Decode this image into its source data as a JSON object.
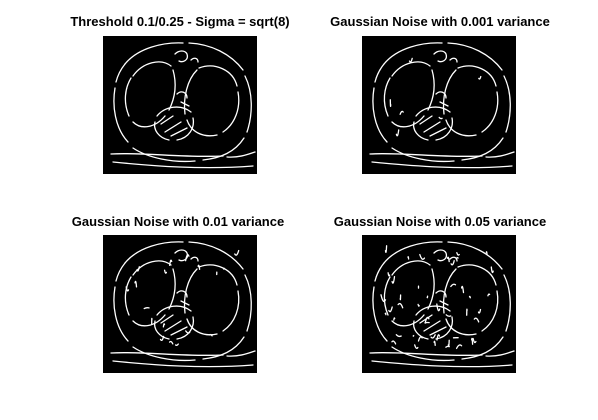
{
  "figure": {
    "panels": [
      {
        "title": "Threshold 0.1/0.25 - Sigma = sqrt(8)",
        "noise": "none"
      },
      {
        "title": "Gaussian Noise with 0.001 variance",
        "noise": "low"
      },
      {
        "title": "Gaussian Noise with 0.01 variance",
        "noise": "medium"
      },
      {
        "title": "Gaussian Noise with 0.05 variance",
        "noise": "high"
      }
    ],
    "colors": {
      "image_background": "#000000",
      "edge_color": "#ffffff",
      "page_background": "#ffffff"
    }
  }
}
